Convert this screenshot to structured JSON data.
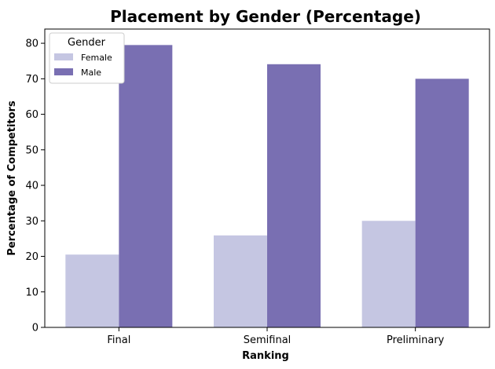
{
  "chart_data": {
    "type": "bar",
    "title": "Placement by Gender (Percentage)",
    "xlabel": "Ranking",
    "ylabel": "Percentage of Competitors",
    "categories": [
      "Final",
      "Semifinal",
      "Preliminary"
    ],
    "series": [
      {
        "name": "Female",
        "color": "#c5c6e2",
        "values": [
          20.5,
          25.9,
          30.0
        ]
      },
      {
        "name": "Male",
        "color": "#796fb2",
        "values": [
          79.5,
          74.1,
          70.0
        ]
      }
    ],
    "ylim": [
      0,
      84
    ],
    "yticks": [
      0,
      10,
      20,
      30,
      40,
      50,
      60,
      70,
      80
    ],
    "legend": {
      "title": "Gender",
      "placement": "top-left"
    },
    "grid": false
  }
}
